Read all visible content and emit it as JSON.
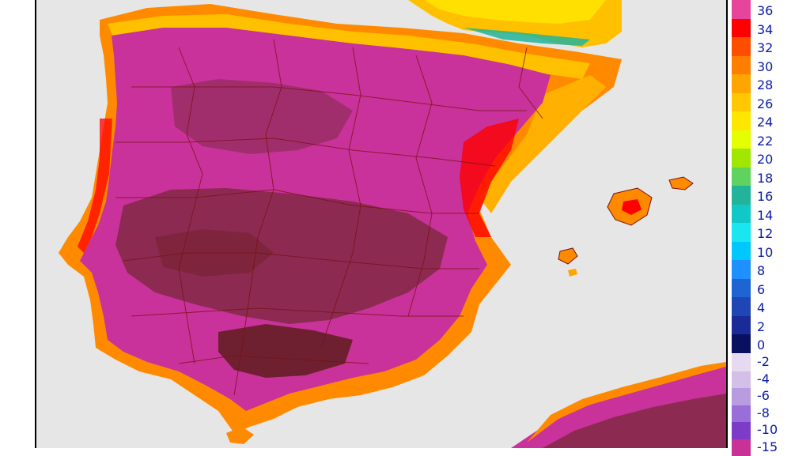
{
  "legend": {
    "positive": [
      {
        "label": "36",
        "color": "#e6459b"
      },
      {
        "label": "34",
        "color": "#ff0000"
      },
      {
        "label": "32",
        "color": "#ff4d00"
      },
      {
        "label": "30",
        "color": "#ff7d00"
      },
      {
        "label": "28",
        "color": "#ffa500"
      },
      {
        "label": "26",
        "color": "#ffc800"
      },
      {
        "label": "24",
        "color": "#ffe600"
      },
      {
        "label": "22",
        "color": "#e6ff00"
      },
      {
        "label": "20",
        "color": "#a0e600"
      },
      {
        "label": "18",
        "color": "#5fd35f"
      },
      {
        "label": "16",
        "color": "#22b49a"
      },
      {
        "label": "14",
        "color": "#11c8c8"
      },
      {
        "label": "12",
        "color": "#19e6f0"
      },
      {
        "label": "10",
        "color": "#00c8ff"
      },
      {
        "label": "8",
        "color": "#1e90ff"
      },
      {
        "label": "6",
        "color": "#1e64d2"
      },
      {
        "label": "4",
        "color": "#1e46b4"
      },
      {
        "label": "2",
        "color": "#1a2a96"
      },
      {
        "label": "0",
        "color": "#0a1060"
      }
    ],
    "negative": [
      {
        "label": "-2",
        "color": "#e6daf0"
      },
      {
        "label": "-4",
        "color": "#d4bfe8"
      },
      {
        "label": "-6",
        "color": "#b99be0"
      },
      {
        "label": "-8",
        "color": "#9a6ed8"
      },
      {
        "label": "-10",
        "color": "#7d3cc8"
      },
      {
        "label": "-15",
        "color": "#c83296"
      }
    ]
  },
  "map": {
    "sea_color": "#e6e6e6",
    "land_hot_color": "#c8329a",
    "land_very_hot_color": "#8c2a52",
    "land_extreme_color": "#6e2030",
    "coast_warm_color": "#ff8a00",
    "coast_mild_color": "#ffc000",
    "north_cool_color": "#ffe000",
    "border_color": "#7a1010"
  }
}
